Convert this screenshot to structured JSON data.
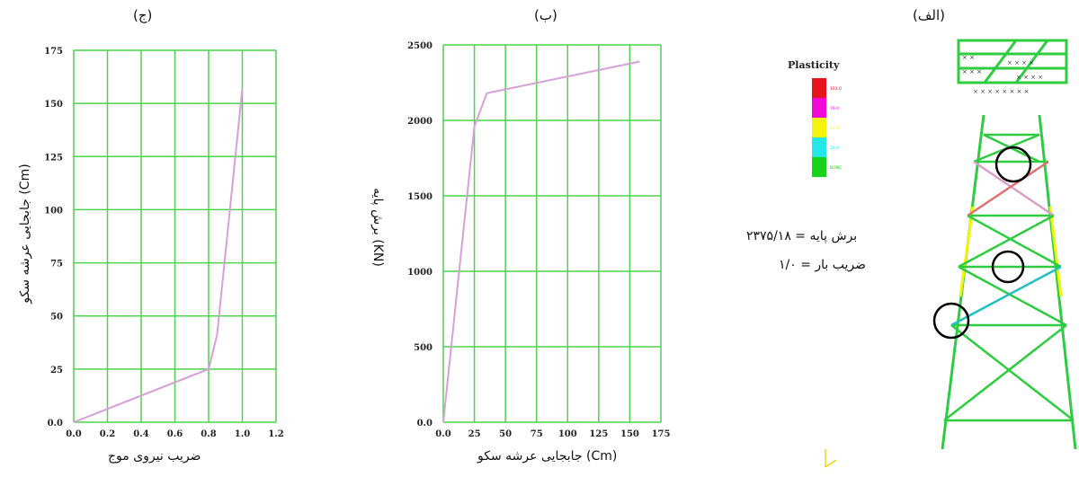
{
  "chart_data": [
    {
      "id": "right",
      "type": "line",
      "title": "(ج)",
      "xlabel": "ضریب نیروی موج",
      "ylabel": "جابجایی عرشه سکو (Cm)",
      "xlim": [
        0,
        1.2
      ],
      "ylim": [
        0,
        175
      ],
      "xticks": [
        "0.0",
        "0.2",
        "0.4",
        "0.6",
        "0.8",
        "1.0",
        "1.2"
      ],
      "yticks": [
        "0.0",
        "25",
        "50",
        "75",
        "100",
        "125",
        "150",
        "175"
      ],
      "x_tick_values": [
        0,
        0.2,
        0.4,
        0.6,
        0.8,
        1.0,
        1.2
      ],
      "y_tick_values": [
        0,
        25,
        50,
        75,
        100,
        125,
        150,
        175
      ],
      "grid": true,
      "series": [
        {
          "color": "#d8a0d8",
          "x": [
            0.0,
            0.8,
            0.85,
            1.0
          ],
          "y": [
            0.0,
            25.0,
            41.0,
            157.0
          ]
        }
      ]
    },
    {
      "id": "middle",
      "type": "line",
      "title": "(ب)",
      "xlabel": "جابجایی عرشه سکو (Cm)",
      "ylabel": "برش پایه (KN)",
      "xlim": [
        0,
        175
      ],
      "ylim": [
        0,
        2500
      ],
      "xticks": [
        "0.0",
        "25",
        "50",
        "75",
        "100",
        "125",
        "150",
        "175"
      ],
      "yticks": [
        "0.0",
        "500",
        "1000",
        "1500",
        "2000",
        "2500"
      ],
      "x_tick_values": [
        0,
        25,
        50,
        75,
        100,
        125,
        150,
        175
      ],
      "y_tick_values": [
        0,
        500,
        1000,
        1500,
        2000,
        2500
      ],
      "grid": true,
      "series": [
        {
          "color": "#d8a0d8",
          "x": [
            0.0,
            25.0,
            35.0,
            158.0
          ],
          "y": [
            0.0,
            1960.0,
            2180.0,
            2390.0
          ]
        }
      ]
    }
  ],
  "model_panel": {
    "title": "(الف)",
    "legend_title": "Plasticity",
    "legend": [
      {
        "color": "#e8141c",
        "label": "101.0"
      },
      {
        "color": "#f00ad8",
        "label": "76.0"
      },
      {
        "color": "#f4f40a",
        "label": "51.0"
      },
      {
        "color": "#22e8e8",
        "label": "26.0"
      },
      {
        "color": "#18d418",
        "label": "NONE"
      }
    ],
    "base_shear_text": "برش پایه = ۲۳۷۵/۱۸",
    "load_factor_text": "ضریب بار = ۱/۰"
  }
}
